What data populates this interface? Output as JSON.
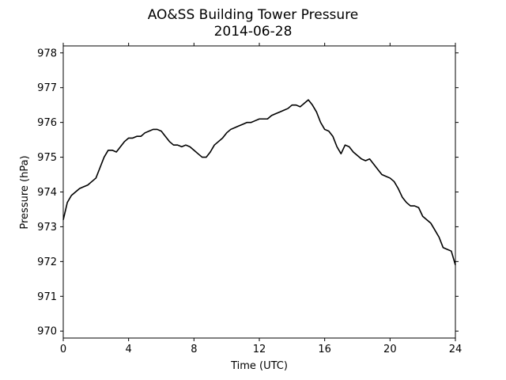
{
  "chart_data": {
    "type": "line",
    "title": "AO&SS Building Tower Pressure",
    "subtitle": "2014-06-28",
    "xlabel": "Time (UTC)",
    "ylabel": "Pressure (hPa)",
    "xlim": [
      0,
      24
    ],
    "ylim": [
      969.8,
      978.2
    ],
    "xticks": [
      0,
      4,
      8,
      12,
      16,
      20,
      24
    ],
    "yticks": [
      970,
      971,
      972,
      973,
      974,
      975,
      976,
      977,
      978
    ],
    "grid": false,
    "series": [
      {
        "color": "#000000",
        "x": [
          0,
          0.25,
          0.5,
          0.75,
          1.0,
          1.25,
          1.5,
          1.75,
          2.0,
          2.25,
          2.5,
          2.75,
          3.0,
          3.25,
          3.5,
          3.75,
          4.0,
          4.25,
          4.5,
          4.75,
          5.0,
          5.25,
          5.5,
          5.75,
          6.0,
          6.25,
          6.5,
          6.75,
          7.0,
          7.25,
          7.5,
          7.75,
          8.0,
          8.25,
          8.5,
          8.75,
          9.0,
          9.25,
          9.5,
          9.75,
          10.0,
          10.25,
          10.5,
          10.75,
          11.0,
          11.25,
          11.5,
          11.75,
          12.0,
          12.25,
          12.5,
          12.75,
          13.0,
          13.25,
          13.5,
          13.75,
          14.0,
          14.25,
          14.5,
          14.75,
          15.0,
          15.25,
          15.5,
          15.75,
          16.0,
          16.25,
          16.5,
          16.75,
          17.0,
          17.25,
          17.5,
          17.75,
          18.0,
          18.25,
          18.5,
          18.75,
          19.0,
          19.25,
          19.5,
          19.75,
          20.0,
          20.25,
          20.5,
          20.75,
          21.0,
          21.25,
          21.5,
          21.75,
          22.0,
          22.25,
          22.5,
          22.75,
          23.0,
          23.25,
          23.5,
          23.75,
          24.0
        ],
        "y": [
          973.2,
          973.7,
          973.9,
          974.0,
          974.1,
          974.15,
          974.2,
          974.3,
          974.4,
          974.7,
          975.0,
          975.2,
          975.2,
          975.15,
          975.3,
          975.45,
          975.55,
          975.55,
          975.6,
          975.6,
          975.7,
          975.75,
          975.8,
          975.8,
          975.75,
          975.6,
          975.45,
          975.35,
          975.35,
          975.3,
          975.35,
          975.3,
          975.2,
          975.1,
          975.0,
          975.0,
          975.15,
          975.35,
          975.45,
          975.55,
          975.7,
          975.8,
          975.85,
          975.9,
          975.95,
          976.0,
          976.0,
          976.05,
          976.1,
          976.1,
          976.1,
          976.2,
          976.25,
          976.3,
          976.35,
          976.4,
          976.5,
          976.5,
          976.45,
          976.55,
          976.65,
          976.5,
          976.3,
          976.0,
          975.8,
          975.75,
          975.6,
          975.3,
          975.1,
          975.35,
          975.3,
          975.15,
          975.05,
          974.95,
          974.9,
          974.95,
          974.8,
          974.65,
          974.5,
          974.45,
          974.4,
          974.3,
          974.1,
          973.85,
          973.7,
          973.6,
          973.6,
          973.55,
          973.3,
          973.2,
          973.1,
          972.9,
          972.7,
          972.4,
          972.35,
          972.3,
          971.9
        ]
      }
    ]
  }
}
